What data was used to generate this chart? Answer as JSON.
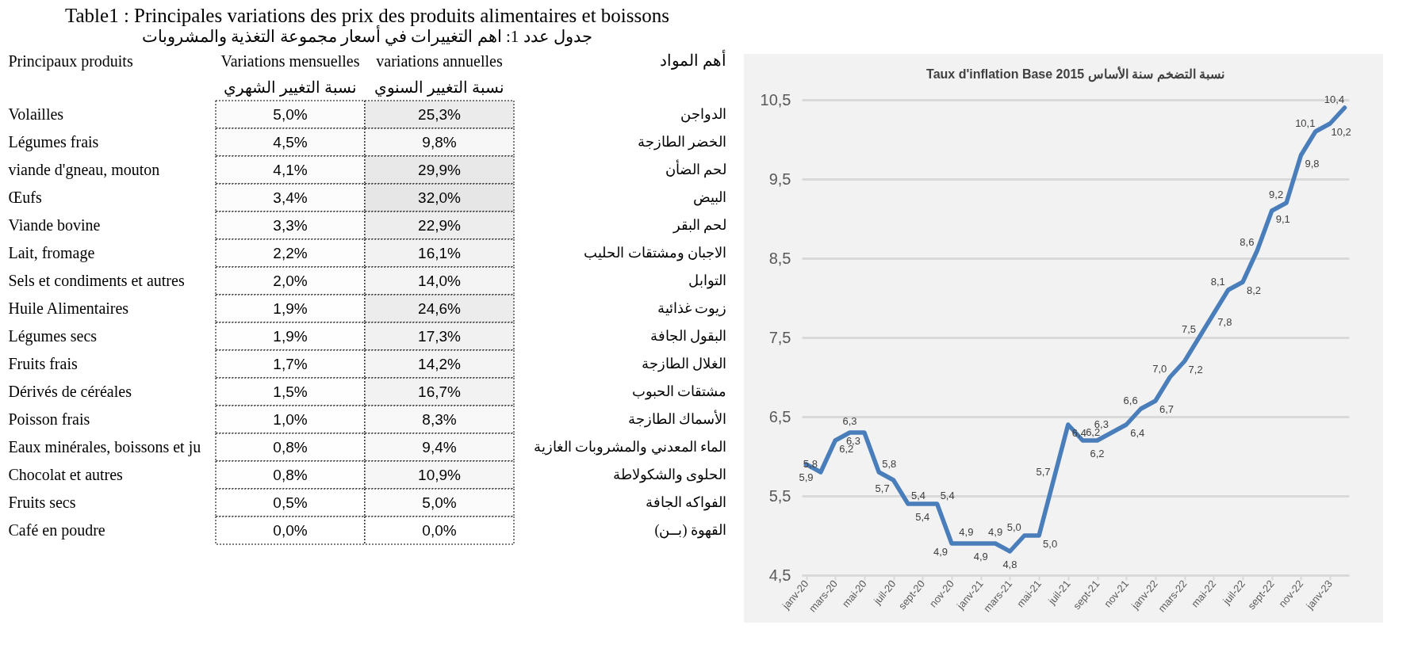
{
  "chart_data": [
    {
      "type": "heatmap",
      "title": "Table1 : Principales variations des prix des produits alimentaires et boissons",
      "subtitle": "جدول عدد 1: اهم التغييرات في أسعار مجموعة التغذية والمشروبات",
      "ylabel": "Principaux produits",
      "y2label": "أهم المواد",
      "categories": [
        "Variations mensuelles",
        "variations annuelles"
      ],
      "annotations": [
        "نسبة التغيير الشهري",
        "نسبة التغيير السنوي"
      ],
      "y_categories": [
        "Volailles",
        "Légumes frais",
        "viande d'gneau, mouton",
        "Œufs",
        "Viande bovine",
        "Lait, fromage",
        "Sels et condiments et autres",
        "Huile Alimentaires",
        "Légumes secs",
        "Fruits frais",
        "Dérivés de céréales",
        "Poisson frais",
        "Eaux minérales, boissons et ju",
        "Chocolat et autres",
        "Fruits secs",
        "Café en poudre"
      ],
      "y2_categories": [
        "الدواجن",
        "الخضر الطازجة",
        "لحم الضأن",
        "البيض",
        "لحم البقر",
        "الاجبان ومشتقات الحليب",
        "التوابل",
        "زيوت غذائية",
        "البقول الجافة",
        "الغلال الطازجة",
        "مشتقات الحبوب",
        "الأسماك الطازجة",
        "الماء المعدني والمشروبات الغازية",
        "الحلوى والشكولاطة",
        "الفواكه الجافة",
        "القهوة (بــن)"
      ],
      "cells": [
        [
          5.0,
          25.3
        ],
        [
          4.5,
          9.8
        ],
        [
          4.1,
          29.9
        ],
        [
          3.4,
          32.0
        ],
        [
          3.3,
          22.9
        ],
        [
          2.2,
          16.1
        ],
        [
          2.0,
          14.0
        ],
        [
          1.9,
          24.6
        ],
        [
          1.9,
          17.3
        ],
        [
          1.7,
          14.2
        ],
        [
          1.5,
          16.7
        ],
        [
          1.0,
          8.3
        ],
        [
          0.8,
          9.4
        ],
        [
          0.8,
          10.9
        ],
        [
          0.5,
          5.0
        ],
        [
          0.0,
          0.0
        ]
      ],
      "cell_labels": [
        [
          "5,0%",
          "25,3%"
        ],
        [
          "4,5%",
          "9,8%"
        ],
        [
          "4,1%",
          "29,9%"
        ],
        [
          "3,4%",
          "32,0%"
        ],
        [
          "3,3%",
          "22,9%"
        ],
        [
          "2,2%",
          "16,1%"
        ],
        [
          "2,0%",
          "14,0%"
        ],
        [
          "1,9%",
          "24,6%"
        ],
        [
          "1,9%",
          "17,3%"
        ],
        [
          "1,7%",
          "14,2%"
        ],
        [
          "1,5%",
          "16,7%"
        ],
        [
          "1,0%",
          "8,3%"
        ],
        [
          "0,8%",
          "9,4%"
        ],
        [
          "0,8%",
          "10,9%"
        ],
        [
          "0,5%",
          "5,0%"
        ],
        [
          "0,0%",
          "0,0%"
        ]
      ]
    },
    {
      "type": "line",
      "title": "Taux d'inflation Base 2015 نسبة التضخم سنة الأساس",
      "categories": [
        "janv-20",
        null,
        "mars-20",
        null,
        "mai-20",
        null,
        "juil-20",
        null,
        "sept-20",
        null,
        "nov-20",
        null,
        "janv-21",
        null,
        "mars-21",
        null,
        "mai-21",
        null,
        "juil-21",
        null,
        "sept-21",
        null,
        "nov-21",
        null,
        "janv-22",
        null,
        "mars-22",
        null,
        "mai-22",
        null,
        "juil-22",
        null,
        "sept-22",
        null,
        "nov-22",
        null,
        "janv-23",
        null
      ],
      "values": [
        5.9,
        5.8,
        6.2,
        6.3,
        6.3,
        5.8,
        5.7,
        5.4,
        5.4,
        5.4,
        4.9,
        4.9,
        4.9,
        4.9,
        4.8,
        5.0,
        5.0,
        5.7,
        6.4,
        6.2,
        6.2,
        6.3,
        6.4,
        6.6,
        6.7,
        7.0,
        7.2,
        7.5,
        7.8,
        8.1,
        8.2,
        8.6,
        9.1,
        9.2,
        9.8,
        10.1,
        10.2,
        10.4
      ],
      "color": "#4a7ebb",
      "ylim": [
        4.5,
        10.5
      ],
      "yticks": [
        {
          "value": 4.5,
          "label": "4,5"
        },
        {
          "value": 5.5,
          "label": "5,5"
        },
        {
          "value": 6.5,
          "label": "6,5"
        },
        {
          "value": 7.5,
          "label": "7,5"
        },
        {
          "value": 8.5,
          "label": "8,5"
        },
        {
          "value": 9.5,
          "label": "9,5"
        },
        {
          "value": 10.5,
          "label": "10,5"
        }
      ],
      "grid": "y",
      "value_labels": [
        "5,9",
        "5,8",
        "6,2",
        "6,3",
        "6,3",
        "5,8",
        "5,7",
        "5,4",
        "5,4",
        "5,4",
        "4,9",
        "4,9",
        "4,9",
        "4,9",
        "4,8",
        "5,0",
        "5,0",
        "5,7",
        "6,4",
        "6,2",
        "6,2",
        "6,3",
        "6,4",
        "6,6",
        "6,7",
        "7,0",
        "7,2",
        "7,5",
        "7,8",
        "8,1",
        "8,2",
        "8,6",
        "9,1",
        "9,2",
        "9,8",
        "10,1",
        "10,2",
        "10,4"
      ]
    }
  ]
}
